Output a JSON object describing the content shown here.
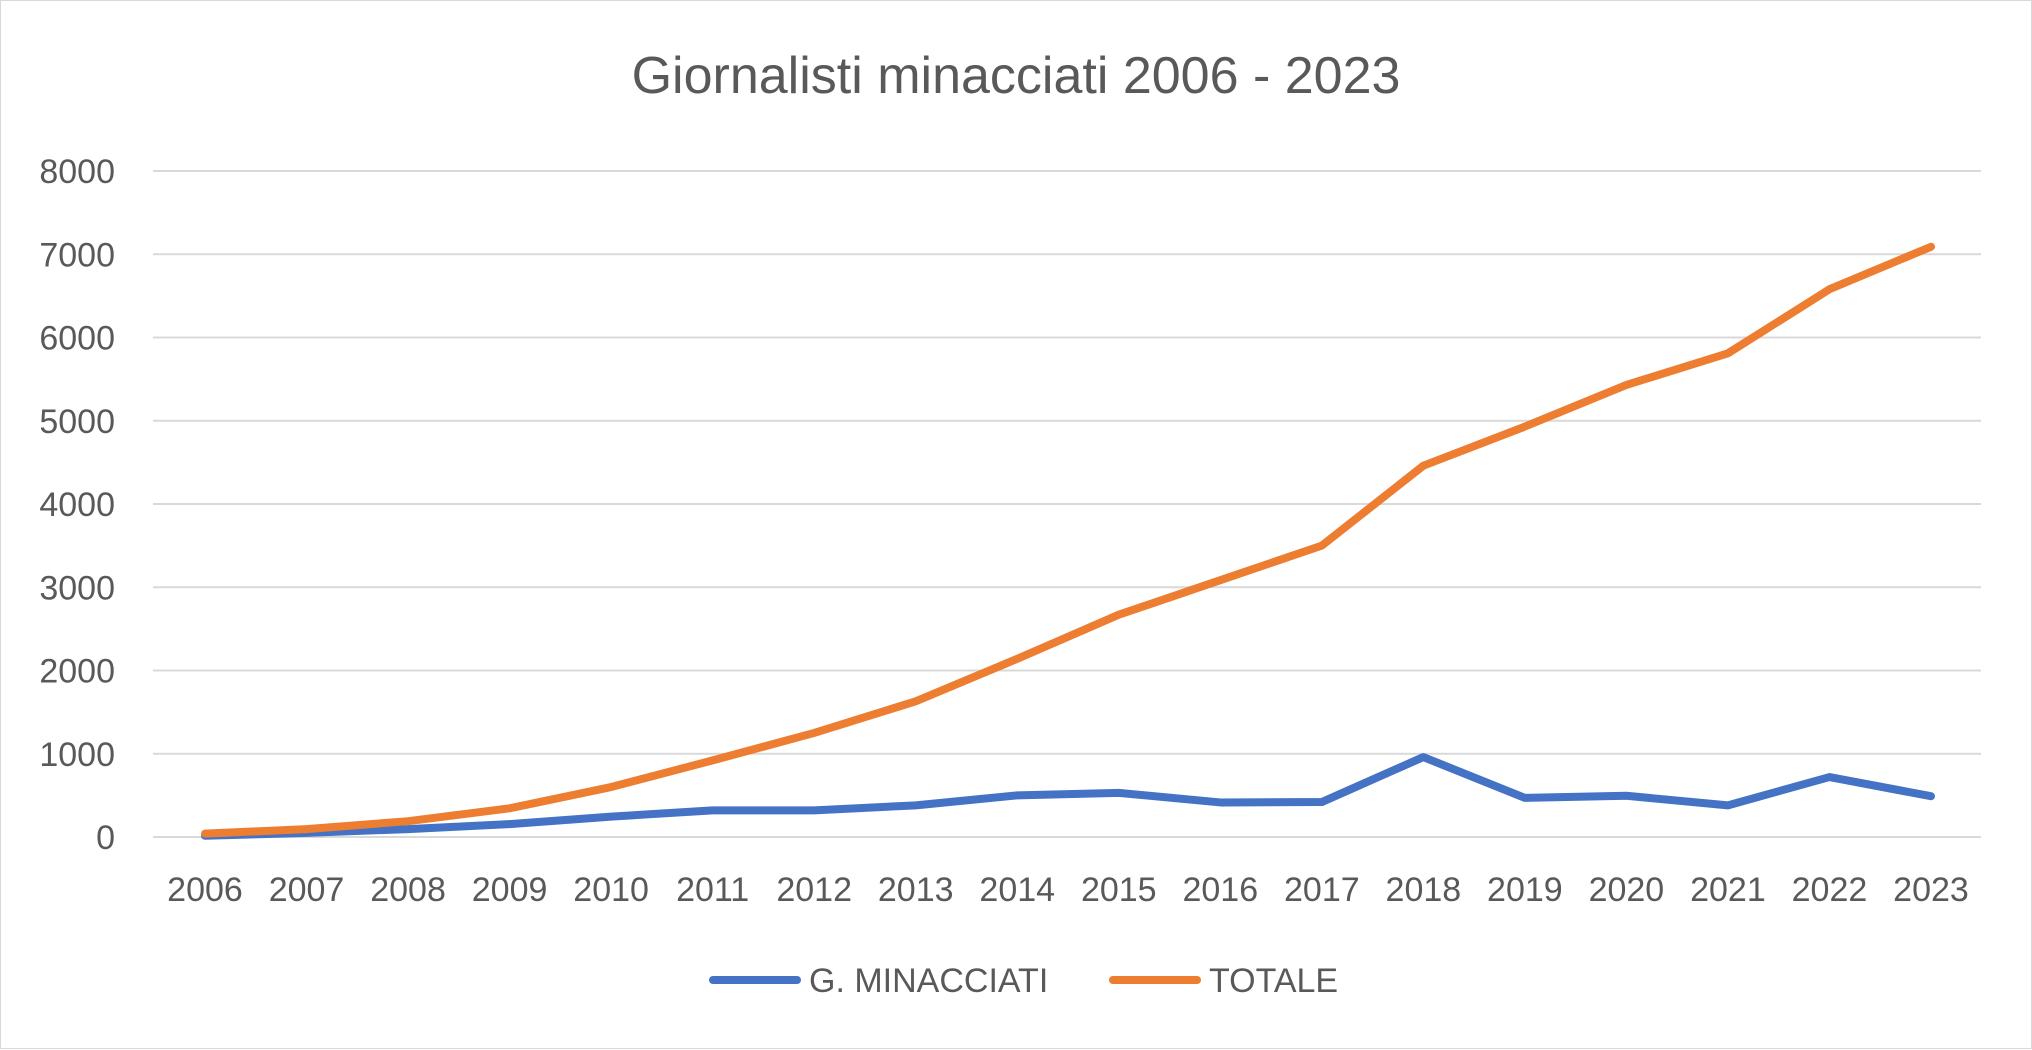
{
  "chart_data": {
    "type": "line",
    "title": "Giornalisti minacciati 2006 - 2023",
    "xlabel": "",
    "ylabel": "",
    "categories": [
      "2006",
      "2007",
      "2008",
      "2009",
      "2010",
      "2011",
      "2012",
      "2013",
      "2014",
      "2015",
      "2016",
      "2017",
      "2018",
      "2019",
      "2020",
      "2021",
      "2022",
      "2023"
    ],
    "ylim": [
      0,
      8000
    ],
    "yticks": [
      "0",
      "1000",
      "2000",
      "3000",
      "4000",
      "5000",
      "6000",
      "7000",
      "8000"
    ],
    "grid": true,
    "legend_position": "bottom",
    "series": [
      {
        "name": "G. MINACCIATI",
        "color": "#4472C4",
        "values": [
          15,
          50,
          95,
          155,
          245,
          320,
          320,
          380,
          500,
          530,
          415,
          420,
          960,
          470,
          495,
          380,
          720,
          490
        ]
      },
      {
        "name": "TOTALE",
        "color": "#ED7D31",
        "values": [
          40,
          95,
          190,
          345,
          600,
          920,
          1250,
          1630,
          2140,
          2670,
          3085,
          3500,
          4460,
          4930,
          5430,
          5810,
          6580,
          7090
        ]
      }
    ]
  }
}
